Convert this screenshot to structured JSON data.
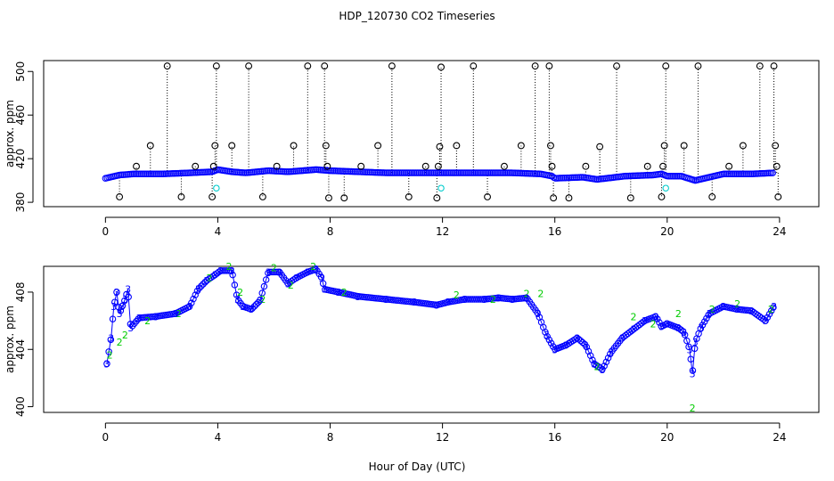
{
  "figure": {
    "title": "HDP_120730  CO2 Timeseries",
    "xlabel": "Hour of Day (UTC)"
  },
  "colors": {
    "background": "#ffffff",
    "axis": "#000000",
    "series_main": "#0000ff",
    "series_alt": "#00cc00",
    "outlier": "#000000",
    "flagged": "#00cccc"
  },
  "chart_data": [
    {
      "type": "scatter",
      "title": "",
      "xlabel": "",
      "ylabel": "approx. ppm",
      "xlim": [
        -2.2,
        25.4
      ],
      "ylim": [
        376,
        510
      ],
      "xticks": [
        0,
        4,
        8,
        12,
        16,
        20,
        24
      ],
      "yticks": [
        380,
        420,
        460,
        500
      ],
      "baseline_series": {
        "name": "CO2",
        "points": [
          [
            0.0,
            402
          ],
          [
            0.5,
            405
          ],
          [
            1.0,
            406
          ],
          [
            2.0,
            406
          ],
          [
            3.0,
            407
          ],
          [
            3.8,
            408
          ],
          [
            4.0,
            410
          ],
          [
            4.5,
            408
          ],
          [
            5.0,
            407
          ],
          [
            5.8,
            409
          ],
          [
            6.5,
            408
          ],
          [
            7.5,
            410
          ],
          [
            8.0,
            409
          ],
          [
            10.0,
            407
          ],
          [
            12.0,
            407
          ],
          [
            13.5,
            407
          ],
          [
            14.5,
            407
          ],
          [
            15.5,
            406
          ],
          [
            15.9,
            404
          ],
          [
            16.0,
            402
          ],
          [
            17.0,
            403
          ],
          [
            17.5,
            401
          ],
          [
            18.5,
            404
          ],
          [
            19.5,
            405
          ],
          [
            19.8,
            406
          ],
          [
            20.0,
            404
          ],
          [
            20.5,
            404
          ],
          [
            21.0,
            400
          ],
          [
            21.5,
            403
          ],
          [
            22.0,
            406
          ],
          [
            23.0,
            406
          ],
          [
            23.8,
            407
          ]
        ]
      },
      "outliers": [
        {
          "x": 0.5,
          "y": 385
        },
        {
          "x": 1.1,
          "y": 413
        },
        {
          "x": 1.6,
          "y": 432
        },
        {
          "x": 2.2,
          "y": 505
        },
        {
          "x": 2.7,
          "y": 385
        },
        {
          "x": 3.2,
          "y": 413
        },
        {
          "x": 3.8,
          "y": 385
        },
        {
          "x": 3.85,
          "y": 413
        },
        {
          "x": 3.9,
          "y": 432
        },
        {
          "x": 3.95,
          "y": 505
        },
        {
          "x": 4.5,
          "y": 432
        },
        {
          "x": 5.1,
          "y": 505
        },
        {
          "x": 5.6,
          "y": 385
        },
        {
          "x": 6.1,
          "y": 413
        },
        {
          "x": 6.7,
          "y": 432
        },
        {
          "x": 7.2,
          "y": 505
        },
        {
          "x": 7.8,
          "y": 505
        },
        {
          "x": 7.85,
          "y": 432
        },
        {
          "x": 7.9,
          "y": 413
        },
        {
          "x": 7.95,
          "y": 384
        },
        {
          "x": 8.5,
          "y": 384
        },
        {
          "x": 9.1,
          "y": 413
        },
        {
          "x": 9.7,
          "y": 432
        },
        {
          "x": 10.2,
          "y": 505
        },
        {
          "x": 10.8,
          "y": 385
        },
        {
          "x": 11.4,
          "y": 413
        },
        {
          "x": 11.8,
          "y": 384
        },
        {
          "x": 11.85,
          "y": 413
        },
        {
          "x": 11.9,
          "y": 431
        },
        {
          "x": 11.95,
          "y": 504
        },
        {
          "x": 12.5,
          "y": 432
        },
        {
          "x": 13.1,
          "y": 505
        },
        {
          "x": 13.6,
          "y": 385
        },
        {
          "x": 14.2,
          "y": 413
        },
        {
          "x": 14.8,
          "y": 432
        },
        {
          "x": 15.3,
          "y": 505
        },
        {
          "x": 15.8,
          "y": 505
        },
        {
          "x": 15.85,
          "y": 432
        },
        {
          "x": 15.9,
          "y": 413
        },
        {
          "x": 15.95,
          "y": 384
        },
        {
          "x": 16.5,
          "y": 384
        },
        {
          "x": 17.1,
          "y": 413
        },
        {
          "x": 17.6,
          "y": 431
        },
        {
          "x": 18.2,
          "y": 505
        },
        {
          "x": 18.7,
          "y": 384
        },
        {
          "x": 19.3,
          "y": 413
        },
        {
          "x": 19.8,
          "y": 385
        },
        {
          "x": 19.85,
          "y": 413
        },
        {
          "x": 19.9,
          "y": 432
        },
        {
          "x": 19.95,
          "y": 505
        },
        {
          "x": 20.6,
          "y": 432
        },
        {
          "x": 21.1,
          "y": 505
        },
        {
          "x": 21.6,
          "y": 385
        },
        {
          "x": 22.2,
          "y": 413
        },
        {
          "x": 22.7,
          "y": 432
        },
        {
          "x": 23.3,
          "y": 505
        },
        {
          "x": 23.8,
          "y": 505
        },
        {
          "x": 23.85,
          "y": 432
        },
        {
          "x": 23.9,
          "y": 413
        },
        {
          "x": 23.95,
          "y": 385
        }
      ],
      "flagged": [
        {
          "x": 3.95,
          "y": 393
        },
        {
          "x": 11.95,
          "y": 393
        },
        {
          "x": 19.95,
          "y": 393
        }
      ]
    },
    {
      "type": "scatter",
      "title": "",
      "xlabel": "",
      "ylabel": "approx. ppm",
      "xlim": [
        -2.2,
        25.4
      ],
      "ylim": [
        399.6,
        409.8
      ],
      "xticks": [
        0,
        4,
        8,
        12,
        16,
        20,
        24
      ],
      "yticks": [
        400,
        404,
        408
      ],
      "series": [
        {
          "name": "3",
          "marker": "3",
          "points": [
            [
              0.05,
              403.0
            ],
            [
              0.2,
              404.8
            ],
            [
              0.3,
              407.0
            ],
            [
              0.4,
              408.0
            ],
            [
              0.5,
              406.5
            ],
            [
              0.6,
              407.0
            ],
            [
              0.7,
              407.5
            ],
            [
              0.8,
              408.2
            ],
            [
              0.9,
              405.5
            ],
            [
              1.2,
              406.2
            ],
            [
              1.8,
              406.3
            ],
            [
              2.5,
              406.5
            ],
            [
              3.0,
              407.0
            ],
            [
              3.3,
              408.2
            ],
            [
              3.6,
              408.8
            ],
            [
              3.9,
              409.2
            ],
            [
              4.1,
              409.5
            ],
            [
              4.5,
              409.5
            ],
            [
              4.7,
              407.5
            ],
            [
              4.9,
              407.0
            ],
            [
              5.2,
              406.8
            ],
            [
              5.5,
              407.4
            ],
            [
              5.8,
              409.4
            ],
            [
              6.2,
              409.4
            ],
            [
              6.5,
              408.6
            ],
            [
              6.8,
              409.0
            ],
            [
              7.2,
              409.4
            ],
            [
              7.5,
              409.6
            ],
            [
              7.7,
              409.0
            ],
            [
              7.8,
              408.2
            ],
            [
              8.3,
              408.0
            ],
            [
              9.0,
              407.7
            ],
            [
              10.0,
              407.5
            ],
            [
              11.0,
              407.3
            ],
            [
              11.8,
              407.1
            ],
            [
              12.2,
              407.3
            ],
            [
              12.8,
              407.5
            ],
            [
              13.5,
              407.5
            ],
            [
              14.0,
              407.6
            ],
            [
              14.5,
              407.5
            ],
            [
              15.0,
              407.6
            ],
            [
              15.4,
              406.5
            ],
            [
              15.7,
              405.0
            ],
            [
              16.0,
              404.0
            ],
            [
              16.4,
              404.3
            ],
            [
              16.8,
              404.8
            ],
            [
              17.1,
              404.3
            ],
            [
              17.4,
              403.0
            ],
            [
              17.7,
              402.6
            ],
            [
              18.0,
              403.8
            ],
            [
              18.4,
              404.8
            ],
            [
              18.8,
              405.4
            ],
            [
              19.2,
              406.0
            ],
            [
              19.6,
              406.3
            ],
            [
              19.8,
              405.6
            ],
            [
              20.0,
              405.8
            ],
            [
              20.4,
              405.5
            ],
            [
              20.6,
              405.2
            ],
            [
              20.8,
              404.0
            ],
            [
              20.9,
              402.3
            ],
            [
              21.0,
              404.5
            ],
            [
              21.2,
              405.5
            ],
            [
              21.5,
              406.5
            ],
            [
              22.0,
              407.0
            ],
            [
              22.5,
              406.8
            ],
            [
              23.0,
              406.7
            ],
            [
              23.5,
              406.0
            ],
            [
              23.8,
              407.0
            ]
          ]
        },
        {
          "name": "2",
          "marker": "2",
          "points": [
            [
              0.15,
              403.6
            ],
            [
              0.5,
              404.5
            ],
            [
              0.7,
              405.0
            ],
            [
              1.5,
              406.0
            ],
            [
              2.6,
              406.5
            ],
            [
              3.7,
              409.0
            ],
            [
              4.4,
              409.8
            ],
            [
              4.8,
              408.0
            ],
            [
              5.6,
              407.5
            ],
            [
              6.0,
              409.7
            ],
            [
              6.6,
              408.5
            ],
            [
              7.4,
              409.8
            ],
            [
              8.5,
              408.0
            ],
            [
              12.5,
              407.8
            ],
            [
              13.8,
              407.5
            ],
            [
              15.0,
              407.9
            ],
            [
              15.5,
              407.9
            ],
            [
              17.5,
              402.8
            ],
            [
              18.8,
              406.3
            ],
            [
              19.5,
              405.8
            ],
            [
              20.4,
              406.5
            ],
            [
              20.9,
              399.9
            ],
            [
              21.6,
              406.8
            ],
            [
              22.5,
              407.2
            ],
            [
              23.7,
              406.8
            ]
          ]
        }
      ]
    }
  ]
}
